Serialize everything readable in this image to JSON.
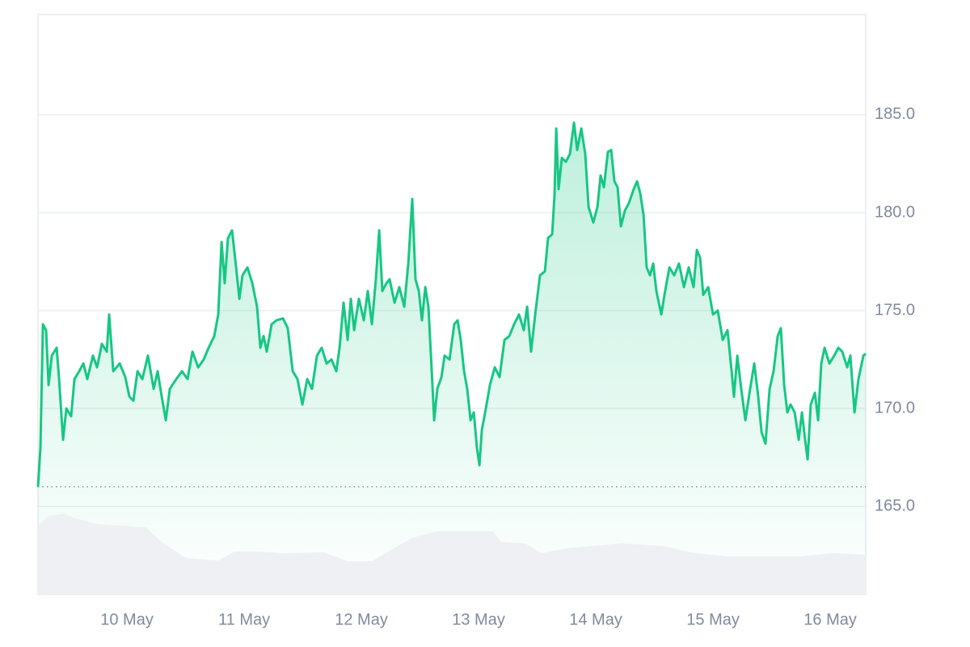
{
  "chart_data": {
    "type": "line",
    "color": "#16c784",
    "grid": true,
    "x": [
      0.241,
      0.262,
      0.283,
      0.31,
      0.331,
      0.359,
      0.4,
      0.421,
      0.455,
      0.483,
      0.524,
      0.552,
      0.593,
      0.628,
      0.662,
      0.71,
      0.745,
      0.786,
      0.828,
      0.848,
      0.883,
      0.938,
      0.986,
      1.021,
      1.055,
      1.09,
      1.131,
      1.179,
      1.228,
      1.262,
      1.297,
      1.331,
      1.366,
      1.421,
      1.469,
      1.517,
      1.559,
      1.607,
      1.655,
      1.697,
      1.745,
      1.779,
      1.807,
      1.834,
      1.862,
      1.897,
      1.931,
      1.959,
      1.986,
      2.028,
      2.069,
      2.11,
      2.138,
      2.166,
      2.193,
      2.234,
      2.276,
      2.331,
      2.372,
      2.414,
      2.455,
      2.497,
      2.538,
      2.579,
      2.621,
      2.662,
      2.703,
      2.745,
      2.786,
      2.814,
      2.848,
      2.883,
      2.91,
      2.938,
      2.979,
      3.021,
      3.055,
      3.09,
      3.124,
      3.152,
      3.179,
      3.214,
      3.241,
      3.283,
      3.324,
      3.366,
      3.4,
      3.434,
      3.462,
      3.49,
      3.517,
      3.545,
      3.572,
      3.6,
      3.621,
      3.648,
      3.683,
      3.71,
      3.752,
      3.793,
      3.821,
      3.848,
      3.876,
      3.903,
      3.931,
      3.959,
      3.986,
      4.007,
      4.028,
      4.062,
      4.097,
      4.138,
      4.179,
      4.221,
      4.262,
      4.303,
      4.345,
      4.386,
      4.414,
      4.448,
      4.483,
      4.524,
      4.566,
      4.593,
      4.628,
      4.648,
      4.662,
      4.683,
      4.71,
      4.745,
      4.779,
      4.814,
      4.841,
      4.876,
      4.91,
      4.938,
      4.979,
      5.014,
      5.041,
      5.069,
      5.103,
      5.131,
      5.159,
      5.186,
      5.214,
      5.248,
      5.283,
      5.324,
      5.352,
      5.379,
      5.407,
      5.434,
      5.462,
      5.49,
      5.517,
      5.559,
      5.586,
      5.628,
      5.669,
      5.71,
      5.752,
      5.793,
      5.834,
      5.862,
      5.89,
      5.917,
      5.959,
      6.0,
      6.041,
      6.083,
      6.124,
      6.159,
      6.179,
      6.207,
      6.241,
      6.276,
      6.317,
      6.352,
      6.386,
      6.414,
      6.448,
      6.483,
      6.517,
      6.552,
      6.579,
      6.607,
      6.634,
      6.662,
      6.697,
      6.731,
      6.759,
      6.786,
      6.807,
      6.834,
      6.869,
      6.897,
      6.924,
      6.952,
      6.993,
      7.034,
      7.069,
      7.103,
      7.145,
      7.172,
      7.207,
      7.241,
      7.283,
      7.303
    ],
    "values": [
      166.0,
      168.0,
      174.3,
      174.0,
      171.2,
      172.7,
      173.1,
      171.5,
      168.4,
      170.0,
      169.6,
      171.5,
      171.9,
      172.3,
      171.5,
      172.7,
      172.1,
      173.3,
      172.9,
      174.8,
      171.9,
      172.3,
      171.6,
      170.6,
      170.4,
      171.9,
      171.5,
      172.7,
      171.0,
      171.9,
      170.6,
      169.4,
      171.0,
      171.5,
      171.9,
      171.5,
      172.9,
      172.1,
      172.5,
      173.1,
      173.7,
      174.8,
      178.5,
      176.4,
      178.7,
      179.1,
      177.2,
      175.6,
      176.8,
      177.2,
      176.4,
      175.2,
      173.1,
      173.7,
      172.9,
      174.3,
      174.5,
      174.6,
      174.1,
      171.9,
      171.5,
      170.2,
      171.5,
      171.0,
      172.7,
      173.1,
      172.3,
      172.5,
      171.9,
      173.1,
      175.4,
      173.5,
      175.6,
      174.0,
      175.6,
      174.5,
      176.0,
      174.3,
      176.6,
      179.1,
      176.0,
      176.4,
      176.6,
      175.4,
      176.2,
      175.2,
      177.4,
      180.7,
      176.6,
      176.0,
      174.5,
      176.2,
      175.2,
      171.9,
      169.4,
      171.0,
      171.6,
      172.7,
      172.5,
      174.3,
      174.5,
      173.5,
      171.9,
      171.0,
      169.4,
      169.8,
      168.0,
      167.1,
      168.9,
      170.0,
      171.2,
      172.1,
      171.6,
      173.5,
      173.7,
      174.3,
      174.8,
      174.0,
      175.2,
      172.9,
      174.8,
      176.8,
      177.0,
      178.7,
      178.9,
      180.9,
      184.3,
      181.2,
      182.8,
      182.6,
      183.0,
      184.6,
      183.2,
      184.3,
      183.0,
      180.3,
      179.5,
      180.3,
      181.9,
      181.3,
      183.1,
      183.2,
      181.6,
      181.3,
      179.3,
      180.1,
      180.5,
      181.2,
      181.6,
      181.0,
      179.9,
      177.2,
      176.8,
      177.4,
      176.0,
      174.8,
      175.8,
      177.2,
      176.8,
      177.4,
      176.2,
      177.2,
      176.2,
      178.1,
      177.7,
      175.8,
      176.2,
      174.8,
      175.0,
      173.5,
      174.0,
      171.9,
      170.6,
      172.7,
      171.0,
      169.4,
      171.0,
      172.3,
      170.6,
      168.8,
      168.2,
      171.0,
      171.9,
      173.7,
      174.1,
      171.2,
      169.8,
      170.2,
      169.8,
      168.4,
      169.8,
      168.4,
      167.4,
      170.2,
      170.8,
      169.4,
      172.3,
      173.1,
      172.3,
      172.7,
      173.1,
      172.9,
      172.1,
      172.7,
      169.8,
      171.5,
      172.7,
      172.8
    ],
    "xlim": [
      0.241,
      7.303
    ],
    "xticks": [
      {
        "value": 1,
        "label": "10 May"
      },
      {
        "value": 2,
        "label": "11 May"
      },
      {
        "value": 3,
        "label": "12 May"
      },
      {
        "value": 4,
        "label": "13 May"
      },
      {
        "value": 5,
        "label": "14 May"
      },
      {
        "value": 6,
        "label": "15 May"
      },
      {
        "value": 7,
        "label": "16 May"
      }
    ],
    "ylim": [
      160.5,
      190.12
    ],
    "yticks": [
      {
        "value": 165,
        "label": "165.0"
      },
      {
        "value": 170,
        "label": "170.0"
      },
      {
        "value": 175,
        "label": "175.0"
      },
      {
        "value": 180,
        "label": "180.0"
      },
      {
        "value": 185,
        "label": "185.0"
      }
    ],
    "baseline": 166,
    "volume": {
      "color": "#eef0f4",
      "ylim": [
        0,
        110
      ],
      "x": [
        0.241,
        0.331,
        0.469,
        0.538,
        0.745,
        1.159,
        1.297,
        1.503,
        1.779,
        1.917,
        2.124,
        2.331,
        2.676,
        2.883,
        3.09,
        3.228,
        3.434,
        3.641,
        4.124,
        4.193,
        4.4,
        4.538,
        4.745,
        5.228,
        5.572,
        5.848,
        6.124,
        6.745,
        7.021,
        7.303
      ],
      "values": [
        85,
        97,
        100,
        95,
        87,
        83,
        65,
        45,
        42,
        53,
        53,
        51,
        52,
        41,
        41,
        53,
        70,
        78,
        78,
        65,
        63,
        51,
        57,
        63,
        60,
        51,
        47,
        47,
        51,
        49
      ]
    }
  }
}
